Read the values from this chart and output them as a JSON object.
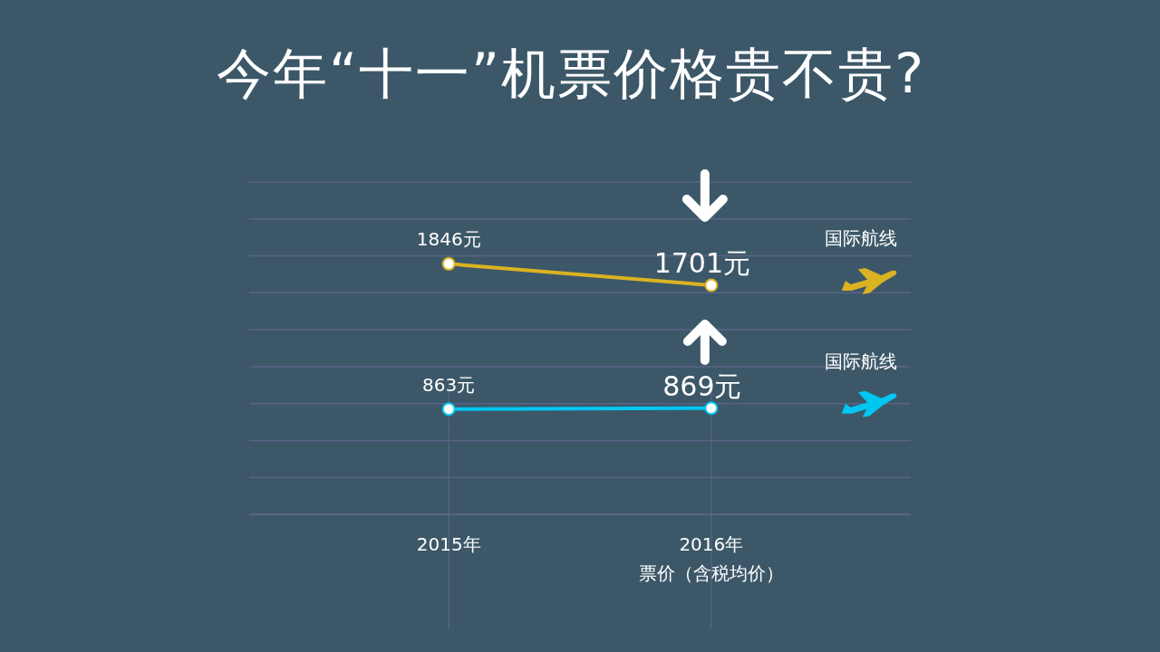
{
  "chart_data": {
    "type": "line",
    "title": "今年“十一”机票价格贵不贵?",
    "xlabel": "票价（含税均价）",
    "categories": [
      "2015年",
      "2016年"
    ],
    "series": [
      {
        "name": "国际航线",
        "color": "#dab222",
        "values": [
          1846,
          1701
        ],
        "value_labels": [
          "1846元",
          "1701元"
        ]
      },
      {
        "name": "国际航线",
        "color": "#00c6f2",
        "values": [
          863,
          869
        ],
        "value_labels": [
          "863元",
          "869元"
        ]
      }
    ],
    "ylim": [
      150,
      2400
    ],
    "yticks": [
      {
        "value": 150,
        "label": null
      },
      {
        "value": 400,
        "label": null
      },
      {
        "value": 650,
        "label": null
      },
      {
        "value": 900,
        "label": null
      },
      {
        "value": 1150,
        "label": null
      },
      {
        "value": 1400,
        "label": null
      },
      {
        "value": 1650,
        "label": null
      },
      {
        "value": 1900,
        "label": null
      },
      {
        "value": 2150,
        "label": null
      },
      {
        "value": 2400,
        "label": null
      }
    ],
    "grid": true,
    "marker": "circle",
    "tick_labels": "x"
  }
}
